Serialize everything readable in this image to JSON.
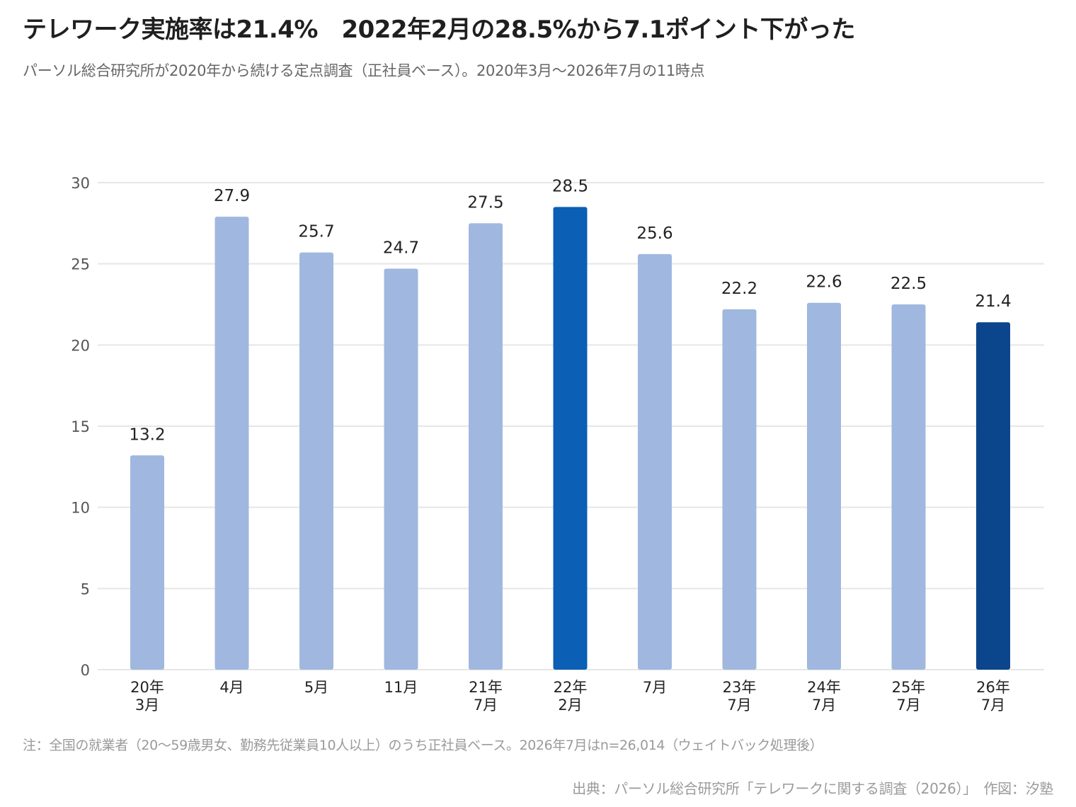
{
  "title": "テレワーク実施率は21.4%　2022年2月の28.5%から7.1ポイント下がった",
  "subtitle": "パーソル総合研究所が2020年から続ける定点調査（正社員ベース）。2020年3月〜2026年7月の11時点",
  "note": "注：全国の就業者（20〜59歳男女、勤務先従業員10人以上）のうち正社員ベース。2026年7月はn=26,014（ウェイトバック処理後）",
  "source": "出典：パーソル総合研究所「テレワークに関する調査（2026）」　作図：汐塾",
  "colors": {
    "default_bar": "#a0b8df",
    "peak_bar": "#0b5fb5",
    "latest_bar": "#0b458b",
    "grid": "#e6e6e6"
  },
  "chart_data": {
    "type": "bar",
    "categories": [
      [
        "20年",
        "3月"
      ],
      [
        "4月"
      ],
      [
        "5月"
      ],
      [
        "11月"
      ],
      [
        "21年",
        "7月"
      ],
      [
        "22年",
        "2月"
      ],
      [
        "7月"
      ],
      [
        "23年",
        "7月"
      ],
      [
        "24年",
        "7月"
      ],
      [
        "25年",
        "7月"
      ],
      [
        "26年",
        "7月"
      ]
    ],
    "values": [
      13.2,
      27.9,
      25.7,
      24.7,
      27.5,
      28.5,
      25.6,
      22.2,
      22.6,
      22.5,
      21.4
    ],
    "value_labels": [
      "13.2",
      "27.9",
      "25.7",
      "24.7",
      "27.5",
      "28.5",
      "25.6",
      "22.2",
      "22.6",
      "22.5",
      "21.4"
    ],
    "highlight": {
      "peak_index": 5,
      "latest_index": 10
    },
    "ylim": [
      0,
      30
    ],
    "yticks": [
      0,
      5,
      10,
      15,
      20,
      25,
      30
    ],
    "grid": true,
    "xlabel": "",
    "ylabel": ""
  }
}
